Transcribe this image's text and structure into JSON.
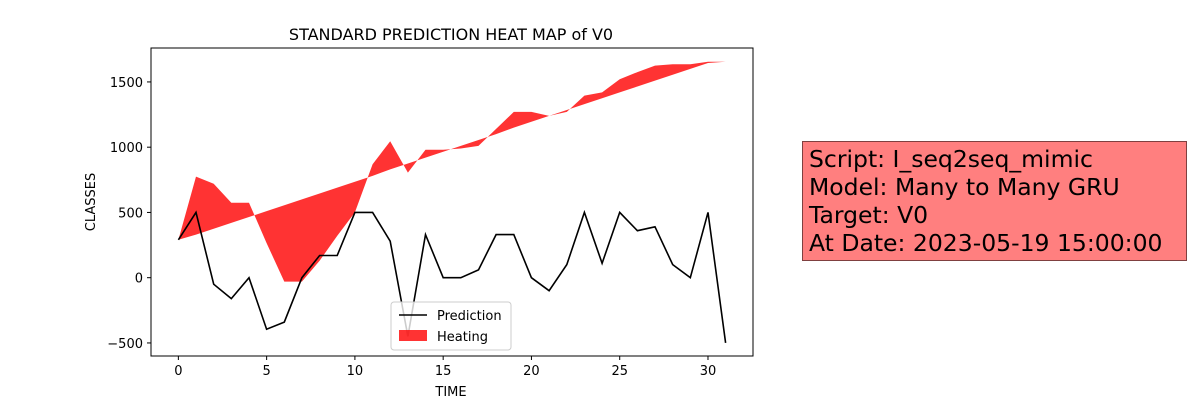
{
  "chart_data": {
    "type": "line",
    "title": "STANDARD PREDICTION HEAT MAP of V0",
    "xlabel": "TIME",
    "ylabel": "CLASSES",
    "xlim": [
      -1.55,
      32.55
    ],
    "ylim": [
      -600,
      1760
    ],
    "xticks": [
      0,
      5,
      10,
      15,
      20,
      25,
      30
    ],
    "yticks": [
      -500,
      0,
      500,
      1000,
      1500
    ],
    "grid": false,
    "legend_position": "lower center",
    "series": [
      {
        "name": "Prediction",
        "kind": "line",
        "color": "#000000",
        "x": [
          0,
          1,
          2,
          3,
          4,
          5,
          6,
          7,
          8,
          9,
          10,
          11,
          12,
          13,
          14,
          15,
          16,
          17,
          18,
          19,
          20,
          21,
          22,
          23,
          24,
          25,
          26,
          27,
          28,
          29,
          30,
          31
        ],
        "y": [
          290,
          500,
          -50,
          -160,
          0,
          -395,
          -340,
          0,
          170,
          170,
          500,
          500,
          280,
          -450,
          330,
          0,
          0,
          60,
          330,
          330,
          0,
          -100,
          100,
          500,
          110,
          500,
          360,
          390,
          100,
          0,
          500,
          -500
        ]
      },
      {
        "name": "Heating",
        "kind": "fill_between",
        "color": "#ff0000",
        "alpha": 0.8,
        "x": [
          0,
          1,
          2,
          3,
          4,
          5,
          6,
          7,
          8,
          9,
          10,
          11,
          12,
          13,
          14,
          15,
          16,
          17,
          18,
          19,
          20,
          21,
          22,
          23,
          24,
          25,
          26,
          27,
          28,
          29,
          30,
          31
        ],
        "y1": [
          290,
          330,
          375,
          420,
          465,
          510,
          555,
          600,
          645,
          690,
          735,
          780,
          830,
          875,
          920,
          965,
          1010,
          1055,
          1100,
          1150,
          1195,
          1240,
          1285,
          1330,
          1375,
          1420,
          1465,
          1510,
          1555,
          1600,
          1645,
          1655
        ],
        "y2": [
          290,
          775,
          720,
          575,
          575,
          265,
          -30,
          -30,
          130,
          320,
          500,
          870,
          1045,
          805,
          980,
          980,
          990,
          1010,
          1140,
          1270,
          1270,
          1240,
          1270,
          1395,
          1420,
          1520,
          1575,
          1625,
          1635,
          1635,
          1655,
          1655
        ]
      }
    ]
  },
  "info": {
    "lines": [
      "Script: I_seq2seq_mimic",
      "Model: Many to Many GRU",
      "Target: V0",
      "At Date: 2023-05-19 15:00:00"
    ]
  }
}
